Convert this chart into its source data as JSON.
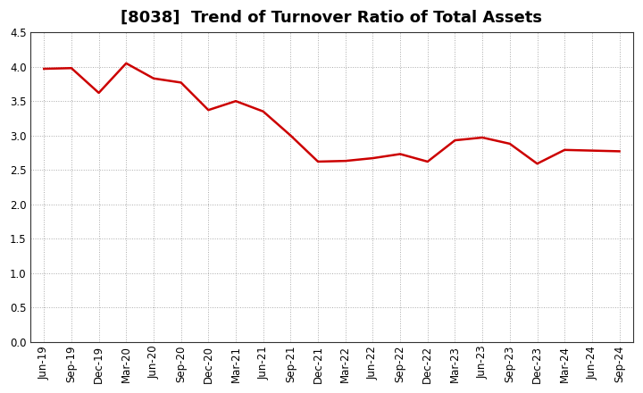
{
  "title": "[8038]  Trend of Turnover Ratio of Total Assets",
  "labels": [
    "Jun-19",
    "Sep-19",
    "Dec-19",
    "Mar-20",
    "Jun-20",
    "Sep-20",
    "Dec-20",
    "Mar-21",
    "Jun-21",
    "Sep-21",
    "Dec-21",
    "Mar-22",
    "Jun-22",
    "Sep-22",
    "Dec-22",
    "Mar-23",
    "Jun-23",
    "Sep-23",
    "Dec-23",
    "Mar-24",
    "Jun-24",
    "Sep-24"
  ],
  "values": [
    3.97,
    3.98,
    3.62,
    4.05,
    3.83,
    3.77,
    3.37,
    3.5,
    3.35,
    3.0,
    2.62,
    2.63,
    2.67,
    2.73,
    2.62,
    2.93,
    2.97,
    2.88,
    2.59,
    2.79,
    2.78,
    2.77
  ],
  "line_color": "#cc0000",
  "line_width": 1.8,
  "ylim": [
    0.0,
    4.5
  ],
  "yticks": [
    0.0,
    0.5,
    1.0,
    1.5,
    2.0,
    2.5,
    3.0,
    3.5,
    4.0,
    4.5
  ],
  "background_color": "#ffffff",
  "grid_color": "#aaaaaa",
  "title_fontsize": 13,
  "tick_fontsize": 8.5,
  "title_fontweight": "bold"
}
